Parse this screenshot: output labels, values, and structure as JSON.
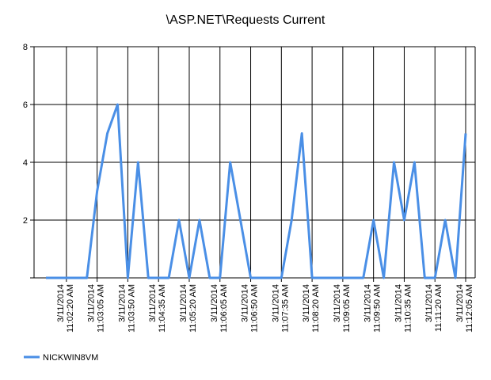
{
  "chart_data": {
    "type": "line",
    "title": "\\ASP.NET\\Requests Current",
    "xlabel": "",
    "ylabel": "",
    "ylim": [
      0,
      8
    ],
    "yticks": [
      "",
      "2",
      "4",
      "6",
      "8"
    ],
    "grid": true,
    "legend_position": "bottom-left",
    "x_tick_labels": [
      [
        "3/11/2014",
        "11:02:20 AM"
      ],
      [
        "3/11/2014",
        "11:03:05 AM"
      ],
      [
        "3/11/2014",
        "11:03:50 AM"
      ],
      [
        "3/11/2014",
        "11:04:35 AM"
      ],
      [
        "3/11/2014",
        "11:05:20 AM"
      ],
      [
        "3/11/2014",
        "11:06:05 AM"
      ],
      [
        "3/11/2014",
        "11:06:50 AM"
      ],
      [
        "3/11/2014",
        "11:07:35 AM"
      ],
      [
        "3/11/2014",
        "11:08:20 AM"
      ],
      [
        "3/11/2014",
        "11:09:05 AM"
      ],
      [
        "3/11/2014",
        "11:09:50 AM"
      ],
      [
        "3/11/2014",
        "11:10:35 AM"
      ],
      [
        "3/11/2014",
        "11:11:20 AM"
      ],
      [
        "3/11/2014",
        "11:12:05 AM"
      ]
    ],
    "series": [
      {
        "name": "NICKWIN8VM",
        "color": "#4a8fe6",
        "values": [
          0,
          0,
          0,
          0,
          0,
          3,
          5,
          6,
          0,
          4,
          0,
          0,
          0,
          2,
          0,
          2,
          0,
          0,
          4,
          2,
          0,
          0,
          0,
          0,
          2,
          5,
          0,
          0,
          0,
          0,
          0,
          0,
          2,
          0,
          4,
          2,
          4,
          0,
          0,
          2,
          0,
          5
        ]
      }
    ]
  }
}
